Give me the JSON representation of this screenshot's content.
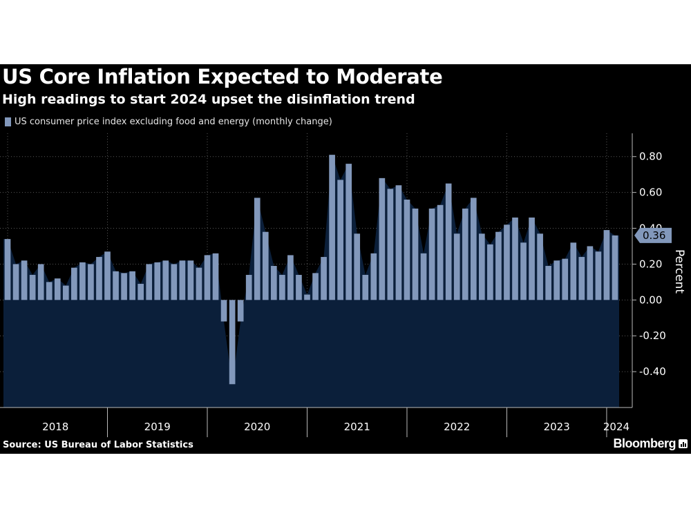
{
  "header": {
    "title": "US Core Inflation Expected to Moderate",
    "subtitle": "High readings to start 2024 upset the disinflation trend"
  },
  "legend": {
    "label": "US consumer price index excluding food and energy (monthly change)"
  },
  "footer": {
    "source": "Source: US Bureau of Labor Statistics",
    "brand": "Bloomberg",
    "brand_icon": "bloomberg-terminal-icon"
  },
  "last_value_label": "0.36",
  "colors": {
    "background": "#000000",
    "bar": "#8298bb",
    "area": "#0b1f3a",
    "grid": "#5a5a5a",
    "text": "#ffffff"
  },
  "chart_data": {
    "type": "bar",
    "title": "US Core Inflation Expected to Moderate",
    "subtitle": "High readings to start 2024 upset the disinflation trend",
    "ylabel": "Percent",
    "ylim": [
      -0.6,
      0.93
    ],
    "yticks": [
      "0.80",
      "0.60",
      "0.40",
      "0.20",
      "0.00",
      "-0.20",
      "-0.40"
    ],
    "grid": true,
    "y_axis_position": "right",
    "x_start": "2018-01",
    "x_labels": [
      "2018",
      "2019",
      "2020",
      "2021",
      "2022",
      "2023",
      "2024"
    ],
    "series": [
      {
        "name": "US consumer price index excluding food and energy (monthly change)",
        "values": [
          0.34,
          0.2,
          0.22,
          0.14,
          0.2,
          0.1,
          0.12,
          0.08,
          0.18,
          0.21,
          0.2,
          0.24,
          0.27,
          0.16,
          0.15,
          0.16,
          0.09,
          0.2,
          0.21,
          0.22,
          0.2,
          0.22,
          0.22,
          0.18,
          0.25,
          0.26,
          -0.12,
          -0.47,
          -0.12,
          0.14,
          0.57,
          0.38,
          0.19,
          0.14,
          0.25,
          0.14,
          0.03,
          0.15,
          0.24,
          0.81,
          0.67,
          0.76,
          0.37,
          0.14,
          0.26,
          0.68,
          0.62,
          0.64,
          0.56,
          0.51,
          0.26,
          0.51,
          0.53,
          0.65,
          0.37,
          0.51,
          0.57,
          0.37,
          0.31,
          0.38,
          0.42,
          0.46,
          0.32,
          0.46,
          0.37,
          0.19,
          0.22,
          0.23,
          0.32,
          0.24,
          0.3,
          0.27,
          0.39,
          0.36
        ]
      }
    ],
    "annotations": [
      "0.36"
    ]
  }
}
